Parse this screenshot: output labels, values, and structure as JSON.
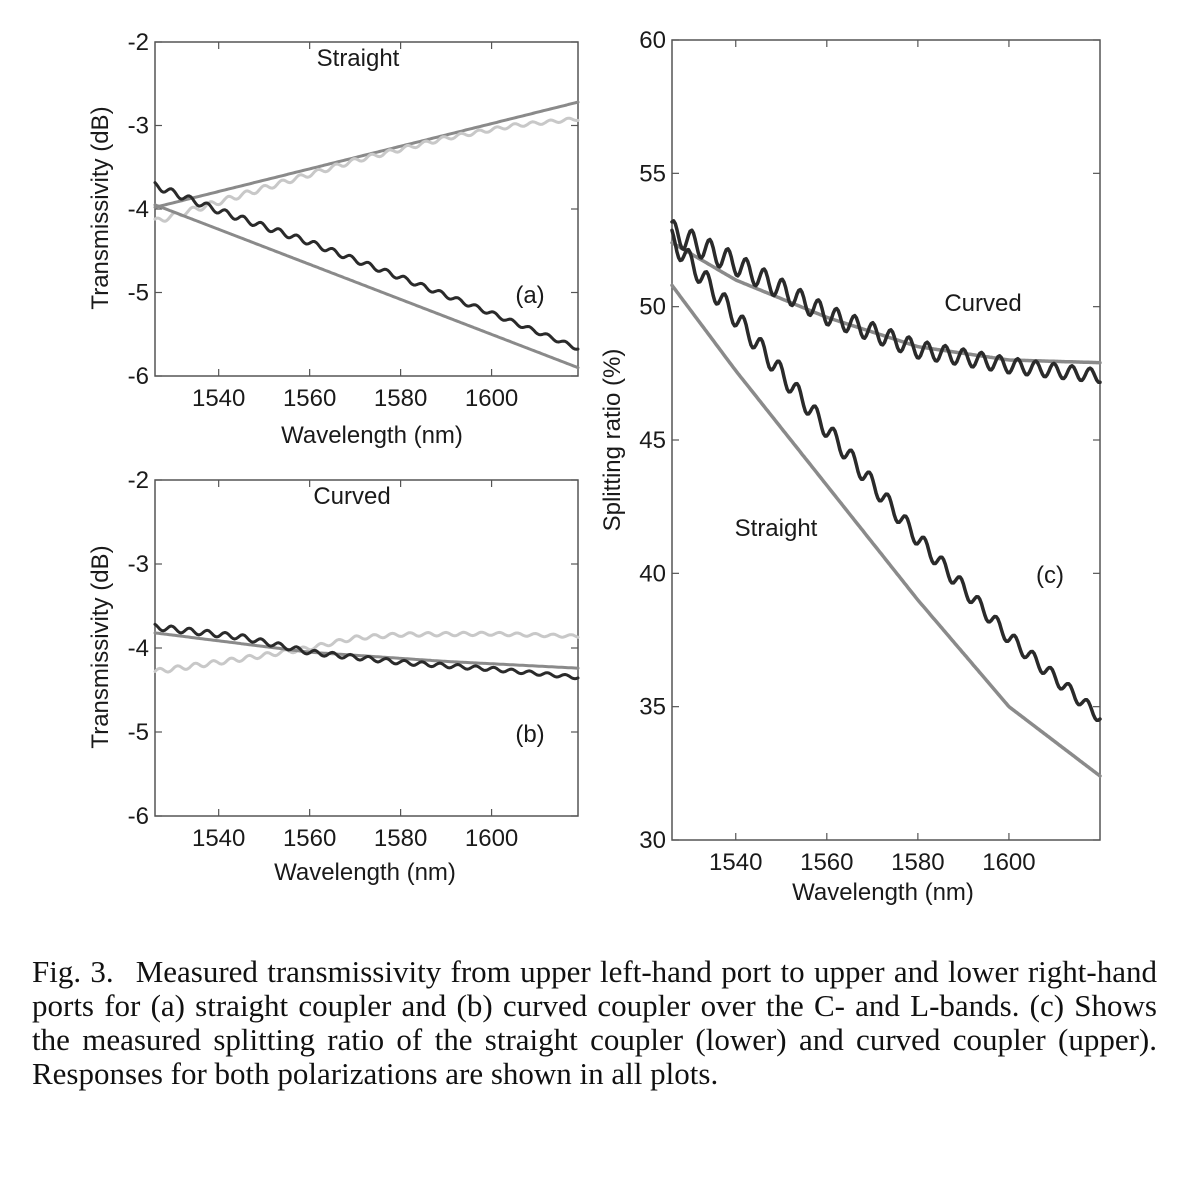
{
  "caption": {
    "label": "Fig. 3.",
    "text": "Measured transmissivity from upper left-hand port to upper and lower right-hand ports for (a) straight coupler and (b) curved coupler over the C- and L-bands. (c) Shows the measured splitting ratio of the straight coupler (lower) and curved coupler (upper). Responses for both polarizations are shown in all plots."
  },
  "chart_data": [
    {
      "id": "a",
      "type": "line",
      "title": "Straight",
      "panel_label": "(a)",
      "xlabel": "Wavelength (nm)",
      "ylabel": "Transmissivity (dB)",
      "xlim": [
        1526,
        1619
      ],
      "ylim": [
        -6,
        -2
      ],
      "xticks": [
        1540,
        1560,
        1580,
        1600
      ],
      "yticks": [
        -6,
        -5,
        -4,
        -3,
        -2
      ],
      "series": [
        {
          "color": "#8a8a8a",
          "width": 3,
          "ripple": 0,
          "x": [
            1526,
            1619
          ],
          "y": [
            -3.98,
            -2.72
          ]
        },
        {
          "color": "#c8c8c8",
          "width": 3,
          "ripple": 0.035,
          "x": [
            1526,
            1550,
            1570,
            1590,
            1605,
            1619
          ],
          "y": [
            -4.15,
            -3.75,
            -3.42,
            -3.15,
            -3.0,
            -2.92
          ]
        },
        {
          "color": "#2a2a2a",
          "width": 3,
          "ripple": 0.04,
          "x": [
            1526,
            1540,
            1560,
            1580,
            1600,
            1619
          ],
          "y": [
            -3.72,
            -4.02,
            -4.4,
            -4.82,
            -5.25,
            -5.67
          ]
        },
        {
          "color": "#8a8a8a",
          "width": 3,
          "ripple": 0,
          "x": [
            1526,
            1619
          ],
          "y": [
            -3.95,
            -5.9
          ]
        }
      ]
    },
    {
      "id": "b",
      "type": "line",
      "title": "Curved",
      "panel_label": "(b)",
      "xlabel": "Wavelength (nm)",
      "ylabel": "Transmissivity (dB)",
      "xlim": [
        1526,
        1619
      ],
      "ylim": [
        -6,
        -2
      ],
      "xticks": [
        1540,
        1560,
        1580,
        1600
      ],
      "yticks": [
        -6,
        -5,
        -4,
        -3,
        -2
      ],
      "series": [
        {
          "color": "#c8c8c8",
          "width": 3,
          "ripple": 0.03,
          "x": [
            1526,
            1545,
            1560,
            1570,
            1580,
            1600,
            1619
          ],
          "y": [
            -4.28,
            -4.13,
            -4.0,
            -3.88,
            -3.84,
            -3.83,
            -3.86
          ]
        },
        {
          "color": "#8a8a8a",
          "width": 3,
          "ripple": 0,
          "x": [
            1526,
            1560,
            1590,
            1619
          ],
          "y": [
            -3.82,
            -4.05,
            -4.16,
            -4.24
          ]
        },
        {
          "color": "#2a2a2a",
          "width": 3,
          "ripple": 0.035,
          "x": [
            1526,
            1545,
            1560,
            1580,
            1600,
            1619
          ],
          "y": [
            -3.75,
            -3.87,
            -4.05,
            -4.17,
            -4.25,
            -4.35
          ]
        }
      ]
    },
    {
      "id": "c",
      "type": "line",
      "panel_label": "(c)",
      "annotations": [
        "Curved",
        "Straight"
      ],
      "xlabel": "Wavelength (nm)",
      "ylabel": "Splitting ratio (%)",
      "xlim": [
        1526,
        1620
      ],
      "ylim": [
        30,
        60
      ],
      "xticks": [
        1540,
        1560,
        1580,
        1600
      ],
      "yticks": [
        30,
        35,
        40,
        45,
        50,
        55,
        60
      ],
      "series": [
        {
          "color": "#8a8a8a",
          "width": 3.5,
          "ripple": 0,
          "x": [
            1526,
            1540,
            1560,
            1580,
            1600,
            1620
          ],
          "y": [
            52.4,
            51.0,
            49.6,
            48.5,
            48.0,
            47.9
          ]
        },
        {
          "color": "#2a2a2a",
          "width": 3.5,
          "ripple": 0.45,
          "x": [
            1526,
            1540,
            1560,
            1580,
            1600,
            1620
          ],
          "y": [
            52.8,
            51.6,
            49.7,
            48.4,
            47.8,
            47.4
          ]
        },
        {
          "color": "#2a2a2a",
          "width": 3.5,
          "ripple": 0.4,
          "x": [
            1526,
            1540,
            1560,
            1580,
            1600,
            1620
          ],
          "y": [
            52.5,
            49.6,
            45.4,
            41.3,
            37.6,
            34.6
          ]
        },
        {
          "color": "#8a8a8a",
          "width": 3.5,
          "ripple": 0,
          "x": [
            1526,
            1540,
            1560,
            1580,
            1600,
            1620
          ],
          "y": [
            50.8,
            47.6,
            43.3,
            39.0,
            35.0,
            32.4
          ]
        }
      ]
    }
  ]
}
